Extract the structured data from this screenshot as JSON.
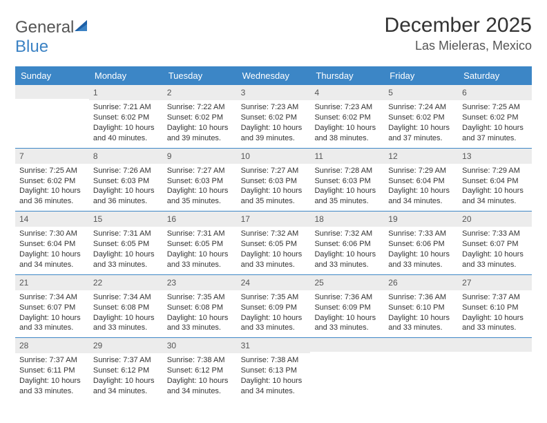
{
  "logo": {
    "part1": "General",
    "part2": "Blue"
  },
  "title": {
    "month_year": "December 2025",
    "location": "Las Mieleras, Mexico"
  },
  "colors": {
    "header_bg": "#3c86c6",
    "header_text": "#ffffff",
    "daynum_bg": "#ececec",
    "text": "#333333",
    "row_border": "#3c86c6",
    "logo_blue": "#3b82c4"
  },
  "weekdays": [
    "Sunday",
    "Monday",
    "Tuesday",
    "Wednesday",
    "Thursday",
    "Friday",
    "Saturday"
  ],
  "weeks": [
    [
      {
        "n": "",
        "lines": []
      },
      {
        "n": "1",
        "lines": [
          "Sunrise: 7:21 AM",
          "Sunset: 6:02 PM",
          "Daylight: 10 hours and 40 minutes."
        ]
      },
      {
        "n": "2",
        "lines": [
          "Sunrise: 7:22 AM",
          "Sunset: 6:02 PM",
          "Daylight: 10 hours and 39 minutes."
        ]
      },
      {
        "n": "3",
        "lines": [
          "Sunrise: 7:23 AM",
          "Sunset: 6:02 PM",
          "Daylight: 10 hours and 39 minutes."
        ]
      },
      {
        "n": "4",
        "lines": [
          "Sunrise: 7:23 AM",
          "Sunset: 6:02 PM",
          "Daylight: 10 hours and 38 minutes."
        ]
      },
      {
        "n": "5",
        "lines": [
          "Sunrise: 7:24 AM",
          "Sunset: 6:02 PM",
          "Daylight: 10 hours and 37 minutes."
        ]
      },
      {
        "n": "6",
        "lines": [
          "Sunrise: 7:25 AM",
          "Sunset: 6:02 PM",
          "Daylight: 10 hours and 37 minutes."
        ]
      }
    ],
    [
      {
        "n": "7",
        "lines": [
          "Sunrise: 7:25 AM",
          "Sunset: 6:02 PM",
          "Daylight: 10 hours and 36 minutes."
        ]
      },
      {
        "n": "8",
        "lines": [
          "Sunrise: 7:26 AM",
          "Sunset: 6:03 PM",
          "Daylight: 10 hours and 36 minutes."
        ]
      },
      {
        "n": "9",
        "lines": [
          "Sunrise: 7:27 AM",
          "Sunset: 6:03 PM",
          "Daylight: 10 hours and 35 minutes."
        ]
      },
      {
        "n": "10",
        "lines": [
          "Sunrise: 7:27 AM",
          "Sunset: 6:03 PM",
          "Daylight: 10 hours and 35 minutes."
        ]
      },
      {
        "n": "11",
        "lines": [
          "Sunrise: 7:28 AM",
          "Sunset: 6:03 PM",
          "Daylight: 10 hours and 35 minutes."
        ]
      },
      {
        "n": "12",
        "lines": [
          "Sunrise: 7:29 AM",
          "Sunset: 6:04 PM",
          "Daylight: 10 hours and 34 minutes."
        ]
      },
      {
        "n": "13",
        "lines": [
          "Sunrise: 7:29 AM",
          "Sunset: 6:04 PM",
          "Daylight: 10 hours and 34 minutes."
        ]
      }
    ],
    [
      {
        "n": "14",
        "lines": [
          "Sunrise: 7:30 AM",
          "Sunset: 6:04 PM",
          "Daylight: 10 hours and 34 minutes."
        ]
      },
      {
        "n": "15",
        "lines": [
          "Sunrise: 7:31 AM",
          "Sunset: 6:05 PM",
          "Daylight: 10 hours and 33 minutes."
        ]
      },
      {
        "n": "16",
        "lines": [
          "Sunrise: 7:31 AM",
          "Sunset: 6:05 PM",
          "Daylight: 10 hours and 33 minutes."
        ]
      },
      {
        "n": "17",
        "lines": [
          "Sunrise: 7:32 AM",
          "Sunset: 6:05 PM",
          "Daylight: 10 hours and 33 minutes."
        ]
      },
      {
        "n": "18",
        "lines": [
          "Sunrise: 7:32 AM",
          "Sunset: 6:06 PM",
          "Daylight: 10 hours and 33 minutes."
        ]
      },
      {
        "n": "19",
        "lines": [
          "Sunrise: 7:33 AM",
          "Sunset: 6:06 PM",
          "Daylight: 10 hours and 33 minutes."
        ]
      },
      {
        "n": "20",
        "lines": [
          "Sunrise: 7:33 AM",
          "Sunset: 6:07 PM",
          "Daylight: 10 hours and 33 minutes."
        ]
      }
    ],
    [
      {
        "n": "21",
        "lines": [
          "Sunrise: 7:34 AM",
          "Sunset: 6:07 PM",
          "Daylight: 10 hours and 33 minutes."
        ]
      },
      {
        "n": "22",
        "lines": [
          "Sunrise: 7:34 AM",
          "Sunset: 6:08 PM",
          "Daylight: 10 hours and 33 minutes."
        ]
      },
      {
        "n": "23",
        "lines": [
          "Sunrise: 7:35 AM",
          "Sunset: 6:08 PM",
          "Daylight: 10 hours and 33 minutes."
        ]
      },
      {
        "n": "24",
        "lines": [
          "Sunrise: 7:35 AM",
          "Sunset: 6:09 PM",
          "Daylight: 10 hours and 33 minutes."
        ]
      },
      {
        "n": "25",
        "lines": [
          "Sunrise: 7:36 AM",
          "Sunset: 6:09 PM",
          "Daylight: 10 hours and 33 minutes."
        ]
      },
      {
        "n": "26",
        "lines": [
          "Sunrise: 7:36 AM",
          "Sunset: 6:10 PM",
          "Daylight: 10 hours and 33 minutes."
        ]
      },
      {
        "n": "27",
        "lines": [
          "Sunrise: 7:37 AM",
          "Sunset: 6:10 PM",
          "Daylight: 10 hours and 33 minutes."
        ]
      }
    ],
    [
      {
        "n": "28",
        "lines": [
          "Sunrise: 7:37 AM",
          "Sunset: 6:11 PM",
          "Daylight: 10 hours and 33 minutes."
        ]
      },
      {
        "n": "29",
        "lines": [
          "Sunrise: 7:37 AM",
          "Sunset: 6:12 PM",
          "Daylight: 10 hours and 34 minutes."
        ]
      },
      {
        "n": "30",
        "lines": [
          "Sunrise: 7:38 AM",
          "Sunset: 6:12 PM",
          "Daylight: 10 hours and 34 minutes."
        ]
      },
      {
        "n": "31",
        "lines": [
          "Sunrise: 7:38 AM",
          "Sunset: 6:13 PM",
          "Daylight: 10 hours and 34 minutes."
        ]
      },
      {
        "n": "",
        "lines": []
      },
      {
        "n": "",
        "lines": []
      },
      {
        "n": "",
        "lines": []
      }
    ]
  ]
}
